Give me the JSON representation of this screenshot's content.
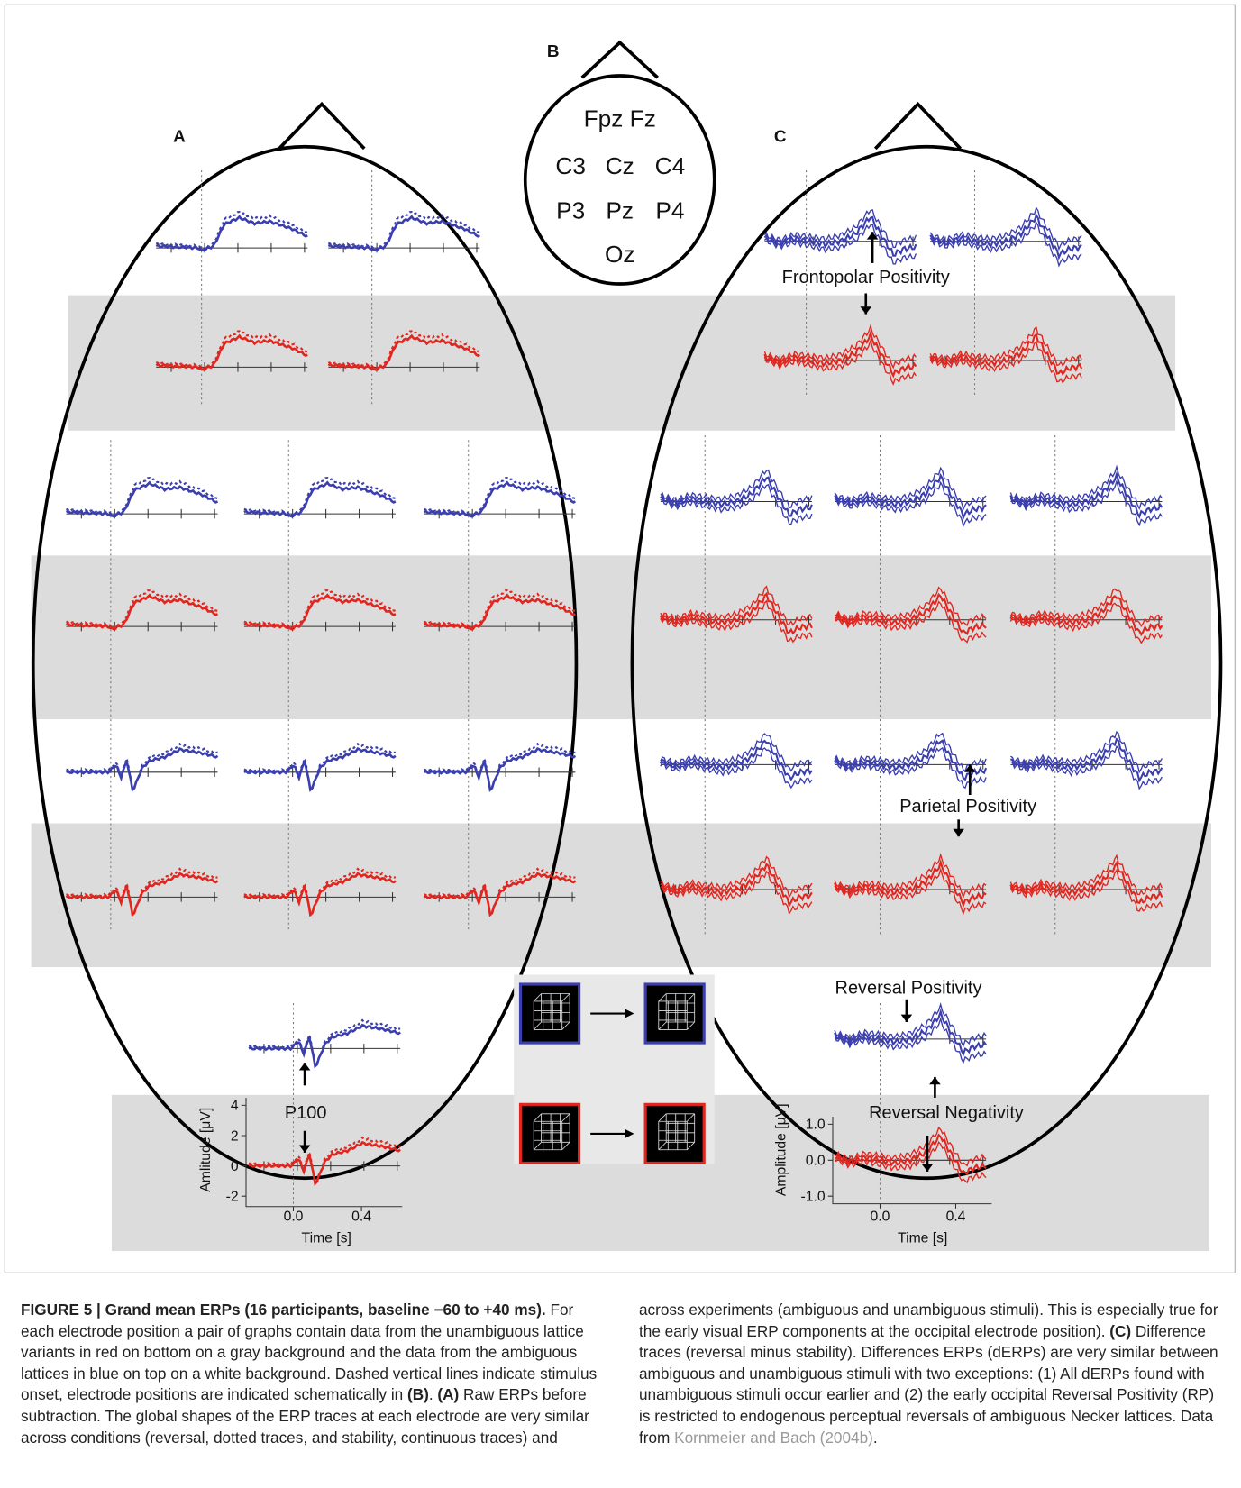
{
  "panels": {
    "a": "A",
    "b": "B",
    "c": "C"
  },
  "electrodes": {
    "row1": "Fpz Fz",
    "row2": [
      "C3",
      "Cz",
      "C4"
    ],
    "row3": [
      "P3",
      "Pz",
      "P4"
    ],
    "row4": "Oz"
  },
  "annotations": {
    "frontopolar": "Frontopolar Positivity",
    "parietal": "Parietal Positivity",
    "reversal_positivity": "Reversal Positivity",
    "reversal_negativity": "Reversal Negativity",
    "p100": "P100"
  },
  "axes_a": {
    "ylabel": "Amlitude [μV]",
    "yticks": [
      "4",
      "2",
      "0",
      "-2"
    ],
    "xticks": [
      "0.0",
      "0.4"
    ],
    "xlabel": "Time [s]"
  },
  "axes_c": {
    "ylabel": "Amplitude [μV]",
    "yticks": [
      "1.0",
      "0.0",
      "-1.0"
    ],
    "xticks": [
      "0.0",
      "0.4"
    ],
    "xlabel": "Time [s]"
  },
  "caption": [
    {
      "text": "FIGURE 5 | Grand mean ERPs (16 participants, baseline −60 to +40 ms).",
      "style": "bold"
    },
    {
      "text": " For each electrode position a pair of graphs contain data from the unambiguous lattice variants in red on bottom on a gray background and the data from the ambiguous lattices in blue on top on a white background. Dashed vertical lines indicate stimulus onset, electrode positions are indicated schematically in ",
      "style": "normal"
    },
    {
      "text": "(B)",
      "style": "bold"
    },
    {
      "text": ". ",
      "style": "normal"
    },
    {
      "text": "(A)",
      "style": "bold"
    },
    {
      "text": " Raw ERPs before subtraction. The global shapes of the ERP traces at each electrode are very similar across conditions (reversal, dotted traces, and stability, continuous traces) and across experiments (ambiguous and unambiguous stimuli). This is especially true for the early visual ERP components at the occipital electrode position). ",
      "style": "normal"
    },
    {
      "text": "(C)",
      "style": "bold"
    },
    {
      "text": " Difference traces (reversal minus stability). Differences ERPs (dERPs) are very similar between ambiguous and unambiguous stimuli with two exceptions: (1) All dERPs found with unambiguous stimuli occur earlier and (2) the early occipital Reversal Positivity (RP) is restricted to endogenous perceptual reversals of ambiguous Necker lattices. Data from ",
      "style": "normal"
    },
    {
      "text": "Kornmeier and Bach (2004b)",
      "style": "link"
    },
    {
      "text": ".",
      "style": "normal"
    }
  ]
}
